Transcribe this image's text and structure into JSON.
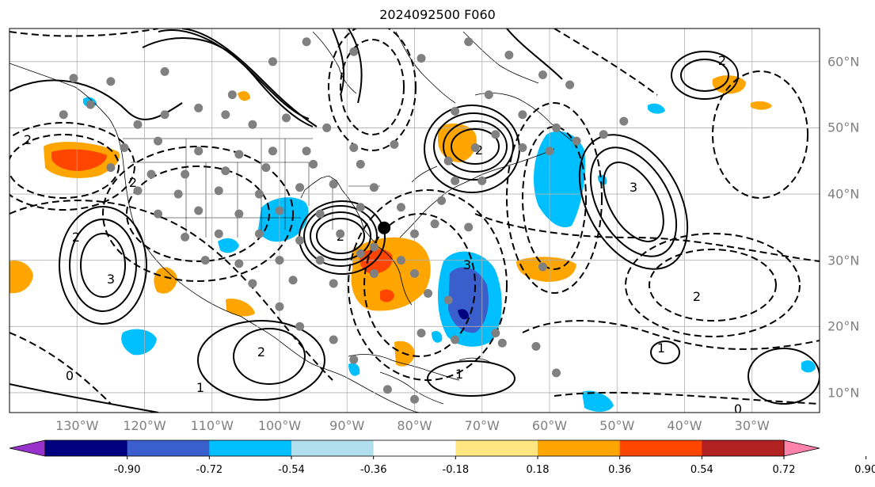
{
  "title": "2024092500 F060",
  "map": {
    "projection": "equirectangular",
    "extent_lon": [
      -140,
      -20
    ],
    "extent_lat": [
      7,
      65
    ],
    "gridlines": true,
    "lon_ticks": [
      {
        "lon": -130,
        "label": "130°W"
      },
      {
        "lon": -120,
        "label": "120°W"
      },
      {
        "lon": -110,
        "label": "110°W"
      },
      {
        "lon": -100,
        "label": "100°W"
      },
      {
        "lon": -90,
        "label": "90°W"
      },
      {
        "lon": -80,
        "label": "80°W"
      },
      {
        "lon": -70,
        "label": "70°W"
      },
      {
        "lon": -60,
        "label": "60°W"
      },
      {
        "lon": -50,
        "label": "50°W"
      },
      {
        "lon": -40,
        "label": "40°W"
      },
      {
        "lon": -30,
        "label": "30°W"
      }
    ],
    "lat_ticks": [
      {
        "lat": 60,
        "label": "60°N"
      },
      {
        "lat": 50,
        "label": "50°N"
      },
      {
        "lat": 40,
        "label": "40°N"
      },
      {
        "lat": 30,
        "label": "30°N"
      },
      {
        "lat": 20,
        "label": "20°N"
      },
      {
        "lat": 10,
        "label": "10°N"
      }
    ],
    "marker": {
      "lon": -84.5,
      "lat": 34.9,
      "color": "#000000"
    },
    "stations": [
      [
        -130.5,
        57.5
      ],
      [
        -125,
        57
      ],
      [
        -117,
        58.5
      ],
      [
        -107,
        55
      ],
      [
        -101,
        60
      ],
      [
        -96,
        63
      ],
      [
        -89,
        61.5
      ],
      [
        -132,
        52
      ],
      [
        -128,
        53.5
      ],
      [
        -121,
        50.5
      ],
      [
        -117,
        52
      ],
      [
        -112,
        53
      ],
      [
        -108,
        52
      ],
      [
        -104,
        50.5
      ],
      [
        -99,
        51.5
      ],
      [
        -93,
        50
      ],
      [
        -123,
        47
      ],
      [
        -118,
        48
      ],
      [
        -112,
        46.5
      ],
      [
        -106,
        46
      ],
      [
        -101,
        46.5
      ],
      [
        -96,
        46.5
      ],
      [
        -89,
        47
      ],
      [
        -83,
        47.5
      ],
      [
        -125,
        44
      ],
      [
        -119,
        43
      ],
      [
        -114,
        43
      ],
      [
        -108,
        43.5
      ],
      [
        -102,
        44
      ],
      [
        -95,
        44.5
      ],
      [
        -88,
        44.5
      ],
      [
        -121,
        40.5
      ],
      [
        -115,
        40
      ],
      [
        -109,
        40.5
      ],
      [
        -103,
        40
      ],
      [
        -97,
        41
      ],
      [
        -92,
        41.5
      ],
      [
        -86,
        41
      ],
      [
        -118,
        37
      ],
      [
        -112,
        37.5
      ],
      [
        -106,
        37
      ],
      [
        -100,
        37.5
      ],
      [
        -94,
        37
      ],
      [
        -88,
        38
      ],
      [
        -82,
        38
      ],
      [
        -114,
        33.5
      ],
      [
        -109,
        34
      ],
      [
        -103,
        34
      ],
      [
        -97,
        33
      ],
      [
        -91,
        34
      ],
      [
        -86,
        32
      ],
      [
        -80,
        34
      ],
      [
        -111,
        30
      ],
      [
        -106,
        29.5
      ],
      [
        -100,
        30
      ],
      [
        -94,
        30
      ],
      [
        -88,
        31
      ],
      [
        -82,
        30
      ],
      [
        -104,
        26.5
      ],
      [
        -98,
        27
      ],
      [
        -92,
        26.5
      ],
      [
        -86,
        28
      ],
      [
        -80,
        28
      ],
      [
        -75,
        45
      ],
      [
        -71,
        47
      ],
      [
        -68,
        49
      ],
      [
        -64,
        47
      ],
      [
        -60,
        46.5
      ],
      [
        -74,
        52.5
      ],
      [
        -69,
        55
      ],
      [
        -64,
        52
      ],
      [
        -59,
        50
      ],
      [
        -56,
        48
      ],
      [
        -61,
        58
      ],
      [
        -66,
        61
      ],
      [
        -72,
        63
      ],
      [
        -79,
        60.5
      ],
      [
        -74,
        42
      ],
      [
        -70,
        42
      ],
      [
        -76,
        39
      ],
      [
        -77,
        35.5
      ],
      [
        -72,
        35
      ],
      [
        -78,
        25
      ],
      [
        -75,
        24
      ],
      [
        -79,
        19
      ],
      [
        -74,
        18
      ],
      [
        -68,
        19
      ],
      [
        -62,
        17
      ],
      [
        -59,
        13
      ],
      [
        -67,
        17.5
      ],
      [
        -84,
        10.5
      ],
      [
        -80,
        9
      ],
      [
        -89,
        15
      ],
      [
        -92,
        18
      ],
      [
        -97,
        20
      ],
      [
        -100,
        23
      ],
      [
        -61,
        29
      ],
      [
        -57,
        56.5
      ],
      [
        -52,
        49
      ],
      [
        -49,
        51
      ]
    ],
    "contours_solid": [
      {
        "label": "1",
        "label_lon": -136,
        "label_lat": 8
      }
    ],
    "colors": {
      "land_line": "#000000",
      "grid": "#b0b0b0",
      "tick_label": "#808080"
    }
  },
  "colorbar": {
    "levels": [
      "-0.90",
      "-0.72",
      "-0.54",
      "-0.36",
      "-0.18",
      "0.18",
      "0.36",
      "0.54",
      "0.72",
      "0.90"
    ],
    "colors": [
      "#9932cc",
      "#000080",
      "#3a5fcd",
      "#00bfff",
      "#b2dfee",
      "#ffffff",
      "#ffe680",
      "#ffa500",
      "#ff4500",
      "#b22222",
      "#ff82ab"
    ]
  }
}
